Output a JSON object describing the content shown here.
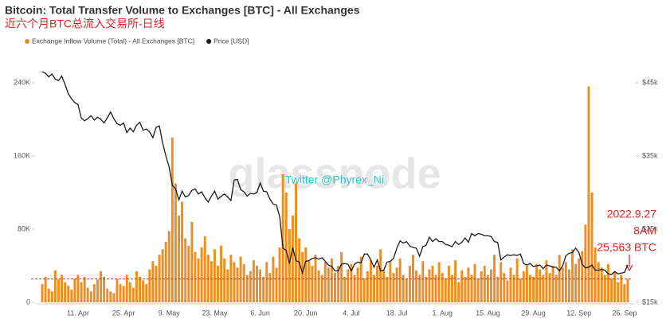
{
  "chart_data": {
    "type": "bar-line",
    "title": "Bitcoin: Total Transfer Volume to Exchanges [BTC] - All Exchanges",
    "subtitle": "近六个月BTC总流入交易所-日线",
    "watermark": "glassnode",
    "credit": "Twitter @Phyrex_Ni",
    "annotations": [
      "2022.9.27",
      "8AM",
      "25,563 BTC"
    ],
    "categories": [
      null,
      null,
      null,
      null,
      null,
      null,
      null,
      null,
      null,
      null,
      null,
      "11. Apr",
      null,
      null,
      null,
      null,
      null,
      null,
      null,
      null,
      null,
      null,
      null,
      null,
      null,
      "25. Apr",
      null,
      null,
      null,
      null,
      null,
      null,
      null,
      null,
      null,
      null,
      null,
      null,
      null,
      "9. May",
      null,
      null,
      null,
      null,
      null,
      null,
      null,
      null,
      null,
      null,
      null,
      null,
      null,
      "23. May",
      null,
      null,
      null,
      null,
      null,
      null,
      null,
      null,
      null,
      null,
      null,
      null,
      null,
      "6. Jun",
      null,
      null,
      null,
      null,
      null,
      null,
      null,
      null,
      null,
      null,
      null,
      null,
      null,
      "20. Jun",
      null,
      null,
      null,
      null,
      null,
      null,
      null,
      null,
      null,
      null,
      null,
      null,
      null,
      "4. Jul",
      null,
      null,
      null,
      null,
      null,
      null,
      null,
      null,
      null,
      null,
      null,
      null,
      null,
      "18. Jul",
      null,
      null,
      null,
      null,
      null,
      null,
      null,
      null,
      null,
      null,
      null,
      null,
      null,
      "1. Aug",
      null,
      null,
      null,
      null,
      null,
      null,
      null,
      null,
      null,
      null,
      null,
      null,
      null,
      "15. Aug",
      null,
      null,
      null,
      null,
      null,
      null,
      null,
      null,
      null,
      null,
      null,
      null,
      null,
      "29. Aug",
      null,
      null,
      null,
      null,
      null,
      null,
      null,
      null,
      null,
      null,
      null,
      null,
      null,
      "12. Sep",
      null,
      null,
      null,
      null,
      null,
      null,
      null,
      null,
      null,
      null,
      null,
      null,
      null,
      "26. Sep",
      null
    ],
    "series": [
      {
        "name": "Exchange Inflow Volume (Total) - All Exchanges [BTC]",
        "color": "#f28c1e",
        "kind": "bar",
        "values": [
          20000,
          28000,
          15000,
          12000,
          35000,
          25000,
          30000,
          22000,
          18000,
          14000,
          26000,
          30000,
          22000,
          28000,
          16000,
          12000,
          20000,
          25000,
          34000,
          28000,
          15000,
          12000,
          10000,
          26000,
          20000,
          18000,
          30000,
          22000,
          16000,
          34000,
          28000,
          24000,
          20000,
          36000,
          45000,
          40000,
          52000,
          58000,
          66000,
          78000,
          180000,
          130000,
          95000,
          110000,
          70000,
          62000,
          88000,
          55000,
          48000,
          60000,
          72000,
          52000,
          45000,
          58000,
          40000,
          62000,
          48000,
          36000,
          52000,
          44000,
          38000,
          50000,
          42000,
          30000,
          34000,
          46000,
          40000,
          36000,
          28000,
          44000,
          32000,
          50000,
          38000,
          60000,
          140000,
          120000,
          80000,
          95000,
          130000,
          70000,
          55000,
          60000,
          45000,
          40000,
          52000,
          35000,
          30000,
          44000,
          38000,
          48000,
          32000,
          40000,
          55000,
          28000,
          36000,
          42000,
          30000,
          38000,
          50000,
          26000,
          34000,
          46000,
          30000,
          40000,
          58000,
          35000,
          28000,
          44000,
          32000,
          38000,
          48000,
          30000,
          26000,
          40000,
          52000,
          35000,
          30000,
          45000,
          28000,
          36000,
          40000,
          30000,
          44000,
          32000,
          26000,
          40000,
          30000,
          46000,
          22000,
          35000,
          28000,
          38000,
          30000,
          42000,
          26000,
          34000,
          40000,
          30000,
          36000,
          52000,
          28000,
          44000,
          32000,
          24000,
          38000,
          30000,
          48000,
          26000,
          34000,
          40000,
          30000,
          28000,
          42000,
          36000,
          30000,
          46000,
          32000,
          40000,
          30000,
          52000,
          38000,
          44000,
          36000,
          58000,
          42000,
          48000,
          56000,
          85000,
          236000,
          120000,
          60000,
          44000,
          38000,
          30000,
          42000,
          26000,
          34000,
          22000,
          30000,
          20000,
          25563
        ]
      },
      {
        "name": "Price [USD]",
        "color": "#1a1a1a",
        "kind": "line",
        "axis": "y2",
        "values": [
          46500,
          46300,
          45800,
          46200,
          45500,
          45300,
          45900,
          44800,
          43500,
          42800,
          42300,
          42000,
          40200,
          39800,
          40100,
          40500,
          39900,
          40300,
          40000,
          39500,
          40200,
          41000,
          40100,
          39400,
          39200,
          39500,
          38200,
          38800,
          38300,
          39200,
          39600,
          38500,
          38700,
          38300,
          37500,
          38900,
          39100,
          36800,
          35000,
          33500,
          31000,
          30500,
          29000,
          30200,
          29400,
          29600,
          30300,
          30500,
          29800,
          30100,
          29300,
          28700,
          29500,
          30200,
          29100,
          29500,
          29800,
          29400,
          28900,
          31700,
          31800,
          30400,
          30100,
          29500,
          29900,
          29800,
          30000,
          31300,
          30200,
          30100,
          29100,
          28400,
          28300,
          26700,
          22400,
          22100,
          20300,
          22500,
          20700,
          20500,
          19000,
          20600,
          20700,
          21000,
          21100,
          20900,
          21100,
          20600,
          20100,
          19900,
          19300,
          19300,
          20200,
          20300,
          20200,
          19300,
          20200,
          20500,
          20400,
          21600,
          21600,
          20800,
          19800,
          20800,
          19300,
          19400,
          20500,
          20600,
          21000,
          22400,
          23400,
          23100,
          23300,
          22700,
          22500,
          22400,
          21300,
          22600,
          22800,
          23900,
          23300,
          23700,
          23300,
          23300,
          22900,
          22800,
          22600,
          23300,
          22900,
          23200,
          23800,
          23200,
          24400,
          24100,
          24400,
          24300,
          24100,
          24100,
          24000,
          23300,
          23200,
          20800,
          21200,
          21500,
          21400,
          21500,
          21400,
          21600,
          20300,
          20100,
          20300,
          19900,
          20000,
          20100,
          19600,
          20100,
          20000,
          19800,
          19800,
          19300,
          20000,
          21400,
          21700,
          21800,
          22400,
          21800,
          20200,
          19700,
          19800,
          20100,
          19400,
          19400,
          19500,
          19400,
          18900,
          18800,
          19200,
          18900,
          19000,
          19100,
          20100
        ]
      }
    ],
    "ylim": [
      0,
      280000
    ],
    "yticks": [
      0,
      {
        "value": 80000,
        "label": "80K"
      },
      {
        "value": 160000,
        "label": "160K"
      },
      {
        "value": 240000,
        "label": "240K"
      }
    ],
    "y2lim": [
      15000,
      50000
    ],
    "y2ticks": [
      {
        "value": 15000,
        "label": "$15k"
      },
      {
        "value": 25000,
        "label": "$25k"
      },
      {
        "value": 35000,
        "label": "$35k"
      },
      {
        "value": 45000,
        "label": "$45k"
      }
    ],
    "reference_color": "#e03030"
  }
}
